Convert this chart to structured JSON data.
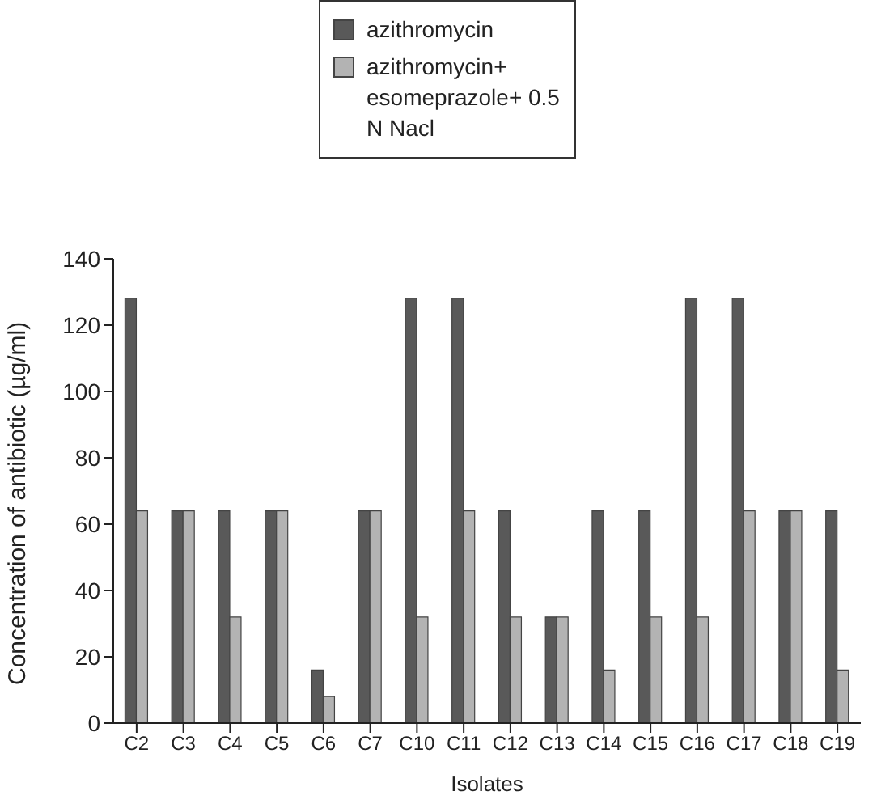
{
  "chart_data": {
    "type": "bar",
    "xlabel": "Isolates",
    "ylabel": "Concentration of antibiotic (µg/ml)",
    "categories": [
      "C2",
      "C3",
      "C4",
      "C5",
      "C6",
      "C7",
      "C10",
      "C11",
      "C12",
      "C13",
      "C14",
      "C15",
      "C16",
      "C17",
      "C18",
      "C19"
    ],
    "series": [
      {
        "name": "azithromycin",
        "color": "#595959",
        "values": [
          128,
          64,
          64,
          64,
          16,
          64,
          128,
          128,
          64,
          32,
          64,
          64,
          128,
          128,
          64,
          64
        ]
      },
      {
        "name": "azithromycin+ esomeprazole+ 0.5 N Nacl",
        "color": "#b3b3b3",
        "values": [
          64,
          64,
          32,
          64,
          8,
          64,
          32,
          64,
          32,
          32,
          16,
          32,
          32,
          64,
          64,
          16
        ]
      }
    ],
    "ylim": [
      0,
      140
    ],
    "yticks": [
      0,
      20,
      40,
      60,
      80,
      100,
      120,
      140
    ],
    "grid": false,
    "legend": "top"
  }
}
